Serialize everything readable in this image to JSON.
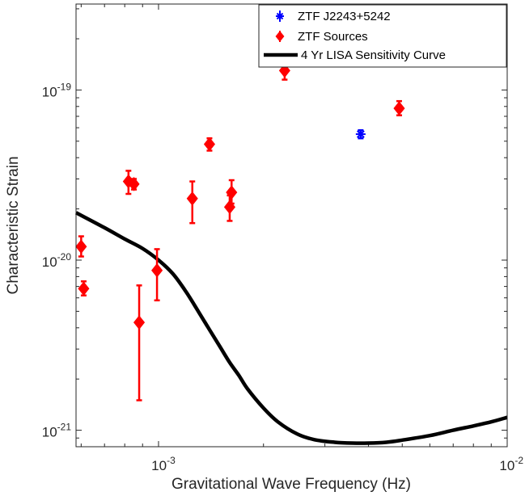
{
  "chart_data": {
    "type": "scatter",
    "xlabel": "Gravitational Wave Frequency (Hz)",
    "ylabel": "Characteristic Strain",
    "x_scale": "log",
    "y_scale": "log",
    "xlim": [
      0.00058,
      0.01
    ],
    "ylim": [
      8e-22,
      3.2e-19
    ],
    "grid": false,
    "legend_position": "top-right",
    "x_ticks": [
      {
        "value": 0.001,
        "base": "10",
        "exp": "-3"
      },
      {
        "value": 0.01,
        "base": "10",
        "exp": "-2"
      }
    ],
    "y_ticks": [
      {
        "value": 1e-21,
        "base": "10",
        "exp": "-21"
      },
      {
        "value": 1e-20,
        "base": "10",
        "exp": "-20"
      },
      {
        "value": 1e-19,
        "base": "10",
        "exp": "-19"
      }
    ],
    "series": [
      {
        "name": "ZTF J2243+5242",
        "kind": "errorbar",
        "color": "#0000ff",
        "marker": "star",
        "points": [
          {
            "x": 0.0038,
            "y": 5.5e-20,
            "ylo": 5.2e-20,
            "yhi": 5.8e-20
          }
        ]
      },
      {
        "name": "ZTF Sources",
        "kind": "errorbar",
        "color": "#ff0000",
        "marker": "diamond",
        "points": [
          {
            "x": 0.0006,
            "y": 1.2e-20,
            "ylo": 1.05e-20,
            "yhi": 1.38e-20
          },
          {
            "x": 0.00061,
            "y": 6.8e-21,
            "ylo": 6.2e-21,
            "yhi": 7.5e-21
          },
          {
            "x": 0.00082,
            "y": 2.9e-20,
            "ylo": 2.45e-20,
            "yhi": 3.35e-20
          },
          {
            "x": 0.00085,
            "y": 2.8e-20,
            "ylo": 2.6e-20,
            "yhi": 3e-20
          },
          {
            "x": 0.00088,
            "y": 4.3e-21,
            "ylo": 1.5e-21,
            "yhi": 7.1e-21
          },
          {
            "x": 0.00099,
            "y": 8.7e-21,
            "ylo": 5.8e-21,
            "yhi": 1.16e-20
          },
          {
            "x": 0.00125,
            "y": 2.3e-20,
            "ylo": 1.65e-20,
            "yhi": 2.9e-20
          },
          {
            "x": 0.0014,
            "y": 4.8e-20,
            "ylo": 4.4e-20,
            "yhi": 5.2e-20
          },
          {
            "x": 0.0016,
            "y": 2.05e-20,
            "ylo": 1.7e-20,
            "yhi": 2.4e-20
          },
          {
            "x": 0.00162,
            "y": 2.5e-20,
            "ylo": 2.15e-20,
            "yhi": 2.95e-20
          },
          {
            "x": 0.0023,
            "y": 1.3e-19,
            "ylo": 1.15e-19,
            "yhi": 1.48e-19
          },
          {
            "x": 0.0049,
            "y": 7.8e-20,
            "ylo": 7.1e-20,
            "yhi": 8.6e-20
          }
        ]
      },
      {
        "name": "4 Yr LISA Sensitivity Curve",
        "kind": "line",
        "color": "#000000",
        "x": [
          0.00058,
          0.0007,
          0.0008,
          0.0009,
          0.001,
          0.0011,
          0.0012,
          0.0013,
          0.0014,
          0.0015,
          0.0016,
          0.0017,
          0.0018,
          0.002,
          0.0022,
          0.0025,
          0.0028,
          0.0032,
          0.0036,
          0.004,
          0.0045,
          0.005,
          0.006,
          0.007,
          0.008,
          0.009,
          0.01
        ],
        "y": [
          1.9e-20,
          1.55e-20,
          1.33e-20,
          1.17e-20,
          1e-20,
          8.3e-21,
          6.5e-21,
          5e-21,
          3.9e-21,
          3.1e-21,
          2.5e-21,
          2.1e-21,
          1.75e-21,
          1.35e-21,
          1.12e-21,
          9.5e-22,
          8.8e-22,
          8.5e-22,
          8.4e-22,
          8.4e-22,
          8.5e-22,
          8.75e-22,
          9.3e-22,
          1e-21,
          1.06e-21,
          1.12e-21,
          1.19e-21
        ]
      }
    ]
  }
}
